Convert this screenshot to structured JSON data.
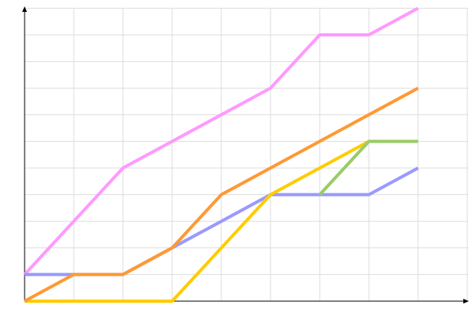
{
  "chart_data": {
    "type": "line",
    "title": "",
    "xlabel": "",
    "ylabel": "",
    "x": [
      0,
      1,
      2,
      3,
      4,
      5,
      6,
      7,
      8
    ],
    "xlim": [
      0,
      9
    ],
    "ylim": [
      0,
      11
    ],
    "grid": true,
    "legend": "none",
    "series": [
      {
        "color": "#ff99ff",
        "values": [
          1,
          3,
          5,
          6,
          7,
          8,
          10,
          10,
          11
        ]
      },
      {
        "color": "#9999ff",
        "values": [
          1,
          1,
          1,
          2,
          3,
          4,
          4,
          4,
          5
        ]
      },
      {
        "color": "#ffcc00",
        "values": [
          0,
          0,
          0,
          0,
          2,
          4,
          5,
          6,
          null
        ]
      },
      {
        "color": "#99cc66",
        "values": [
          null,
          null,
          null,
          null,
          null,
          null,
          4,
          6,
          6
        ]
      },
      {
        "color": "#ff9933",
        "values": [
          0,
          1,
          1,
          2,
          4,
          5,
          6,
          7,
          8
        ]
      }
    ]
  }
}
